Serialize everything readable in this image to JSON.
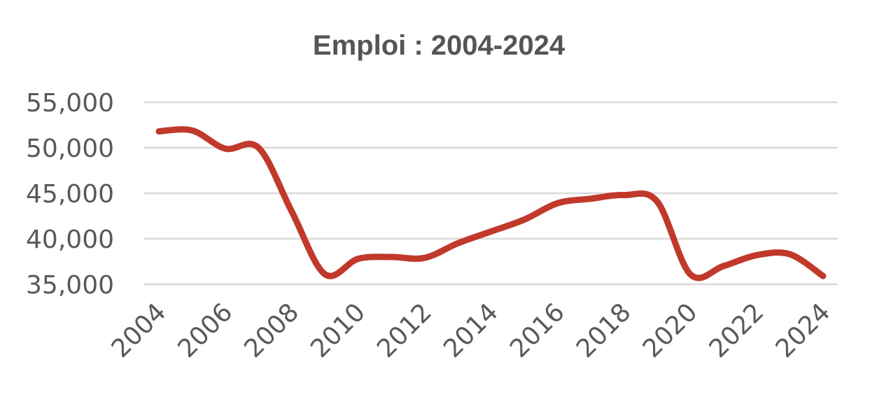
{
  "chart_data": {
    "type": "line",
    "title": "Emploi : 2004-2024",
    "xlabel": "",
    "ylabel": "",
    "x": [
      2004,
      2005,
      2006,
      2007,
      2008,
      2009,
      2010,
      2011,
      2012,
      2013,
      2014,
      2015,
      2016,
      2017,
      2018,
      2019,
      2020,
      2021,
      2022,
      2023,
      2024
    ],
    "x_tick_labels": [
      "2004",
      "2006",
      "2008",
      "2010",
      "2012",
      "2014",
      "2016",
      "2018",
      "2020",
      "2022",
      "2024"
    ],
    "series": [
      {
        "name": "",
        "color": "#c0392b",
        "values": [
          51800,
          51900,
          49900,
          50000,
          43000,
          36100,
          37800,
          38000,
          37900,
          39500,
          40800,
          42100,
          43900,
          44400,
          44800,
          44100,
          36100,
          37000,
          38200,
          38300,
          35900
        ]
      }
    ],
    "ylim": [
      35000,
      55000
    ],
    "y_ticks": [
      35000,
      40000,
      45000,
      50000,
      55000
    ],
    "y_tick_labels": [
      "35,000",
      "40,000",
      "45,000",
      "50,000",
      "55,000"
    ],
    "grid": true,
    "legend": "none"
  }
}
